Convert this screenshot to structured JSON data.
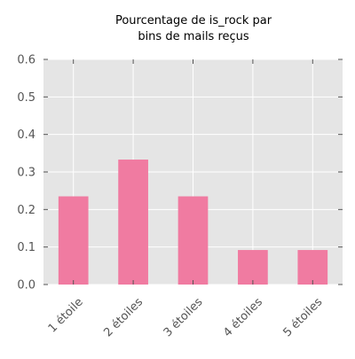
{
  "chart_data": {
    "type": "bar",
    "title_lines": [
      "Pourcentage de is_rock par",
      "bins de mails reçus"
    ],
    "categories": [
      "1 étoile",
      "2 étoiles",
      "3 étoiles",
      "4 étoiles",
      "5 étoiles"
    ],
    "values": [
      0.235,
      0.333,
      0.235,
      0.092,
      0.092
    ],
    "ylim": [
      0,
      0.6
    ],
    "yticks": [
      "0.0",
      "0.1",
      "0.2",
      "0.3",
      "0.4",
      "0.5",
      "0.6"
    ],
    "xlabel": "",
    "ylabel": "",
    "grid": true,
    "legend": "none",
    "colors": {
      "bar": "#f07ba1",
      "plot_background": "#e5e5e5",
      "grid": "#ffffff",
      "tick_text": "#555555"
    }
  }
}
